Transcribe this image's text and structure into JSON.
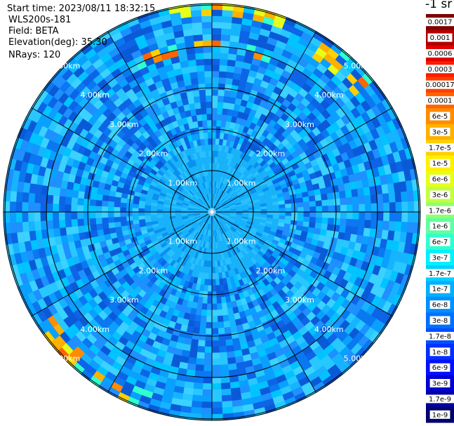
{
  "header": {
    "start_time": "Start time: 2023/08/11 18:32:15",
    "instrument": "WLS200s-181",
    "field": "Field: BETA",
    "elevation": "Elevation(deg): 35.30",
    "nrays": "NRays: 120"
  },
  "colorbar": {
    "unit": "-1 sr",
    "labels": [
      "0.0017",
      "0.001",
      "0.0006",
      "0.0003",
      "0.00017",
      "0.0001",
      "6e-5",
      "3e-5",
      "1.7e-5",
      "1e-5",
      "6e-6",
      "3e-6",
      "1.7e-6",
      "1e-6",
      "6e-7",
      "3e-7",
      "1.7e-7",
      "1e-7",
      "6e-8",
      "3e-8",
      "1.7e-8",
      "1e-8",
      "6e-9",
      "3e-9",
      "1.7e-9",
      "1e-9"
    ],
    "colors": [
      "#7f0000",
      "#b00000",
      "#e00000",
      "#ff1a00",
      "#ff4000",
      "#ff6400",
      "#ff8c00",
      "#ffb000",
      "#ffd000",
      "#fff000",
      "#e6ff1a",
      "#c0ff40",
      "#90ff70",
      "#60ffa0",
      "#30ffd0",
      "#00f0ff",
      "#00d0ff",
      "#00b0ff",
      "#0090ff",
      "#0070ff",
      "#0050ff",
      "#0030ff",
      "#0010ff",
      "#0000d0",
      "#0000a0",
      "#000070"
    ]
  },
  "chart_data": {
    "type": "ppi_polar",
    "field": "BETA",
    "elevation_deg": 35.3,
    "n_rays": 120,
    "max_range_km": 5.0,
    "range_ring_labels": [
      "1.00km",
      "2.00km",
      "3.00km",
      "4.00km",
      "5.00km"
    ],
    "radial_lines_every_deg": 30,
    "dominant_value_range": [
      "1e-7",
      "3e-7"
    ]
  }
}
